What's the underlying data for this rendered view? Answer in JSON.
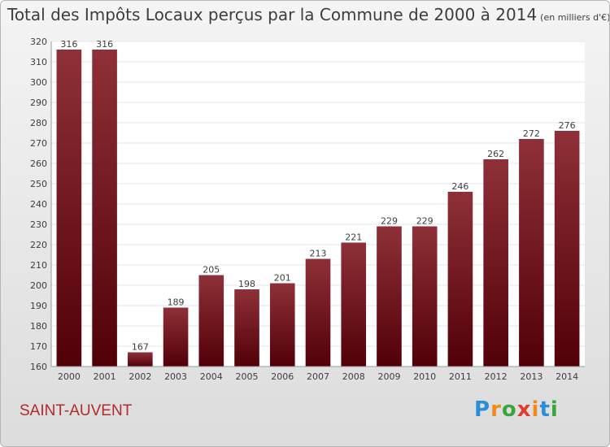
{
  "chart_data": {
    "type": "bar",
    "title": "Total des Impôts Locaux perçus par la Commune de 2000 à 2014",
    "subtitle": "(en milliers d'€)",
    "categories": [
      "2000",
      "2001",
      "2002",
      "2003",
      "2004",
      "2005",
      "2006",
      "2007",
      "2008",
      "2009",
      "2010",
      "2011",
      "2012",
      "2013",
      "2014"
    ],
    "values": [
      316,
      316,
      167,
      189,
      205,
      198,
      201,
      213,
      221,
      229,
      229,
      246,
      262,
      272,
      276
    ],
    "ylim": [
      160,
      320
    ],
    "yticks": [
      160,
      170,
      180,
      190,
      200,
      210,
      220,
      230,
      240,
      250,
      260,
      270,
      280,
      290,
      300,
      310,
      320
    ],
    "grid": true,
    "bar_color": "#7a1a22",
    "bar_color_light": "#8f3038",
    "bar_color_dark": "#520008"
  },
  "commune": "SAINT-AUVENT",
  "logo": {
    "letters": [
      "P",
      "r",
      "o",
      "x",
      "i",
      "t",
      "i"
    ],
    "colors": [
      "#2a8fd6",
      "#f08a1c",
      "#3aa63a",
      "#e23b2e",
      "#f08a1c",
      "#2a8fd6",
      "#3aa63a"
    ]
  }
}
